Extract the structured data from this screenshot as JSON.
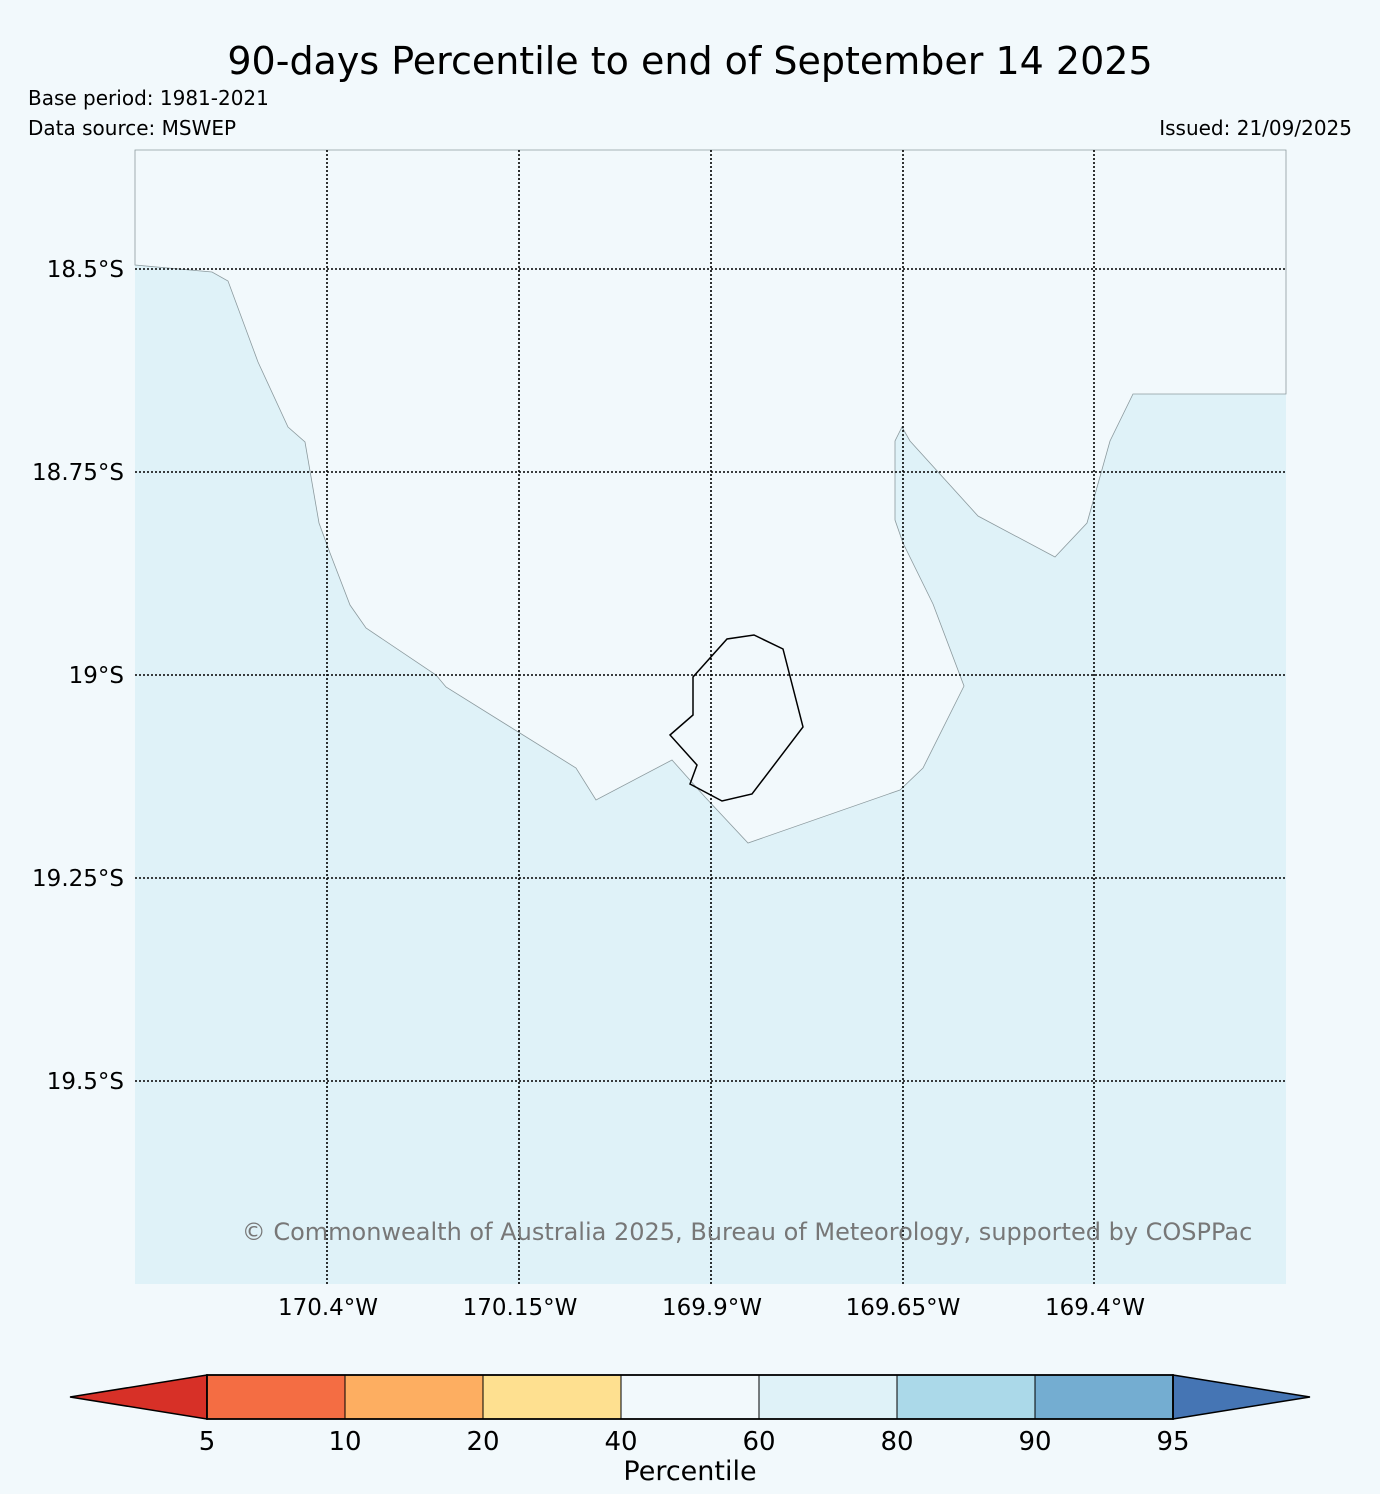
{
  "header": {
    "title": "90-days Percentile to end of September 14 2025",
    "base_period": "Base period: 1981-2021",
    "data_source": "Data source: MSWEP",
    "issued": "Issued: 21/09/2025"
  },
  "map": {
    "latitude_labels": [
      "18.5°S",
      "18.75°S",
      "19°S",
      "19.25°S",
      "19.5°S"
    ],
    "longitude_labels": [
      "170.4°W",
      "170.15°W",
      "169.9°W",
      "169.65°W",
      "169.4°W"
    ],
    "copyright": "© Commonwealth of Australia 2025, Bureau of Meteorology, supported by COSPPac",
    "colors": {
      "background": "#f2f9fc",
      "region_60_80": "#dff2f8",
      "region_40_60": "#f2f9fc",
      "coastline": "#000000"
    }
  },
  "colorbar": {
    "label": "Percentile",
    "ticks": [
      "5",
      "10",
      "20",
      "40",
      "60",
      "80",
      "90",
      "95"
    ],
    "colors": [
      "#d73027",
      "#f46d43",
      "#fdae61",
      "#fee090",
      "#f2f9fc",
      "#dff2f8",
      "#abd9e9",
      "#74add1",
      "#4575b4"
    ]
  }
}
